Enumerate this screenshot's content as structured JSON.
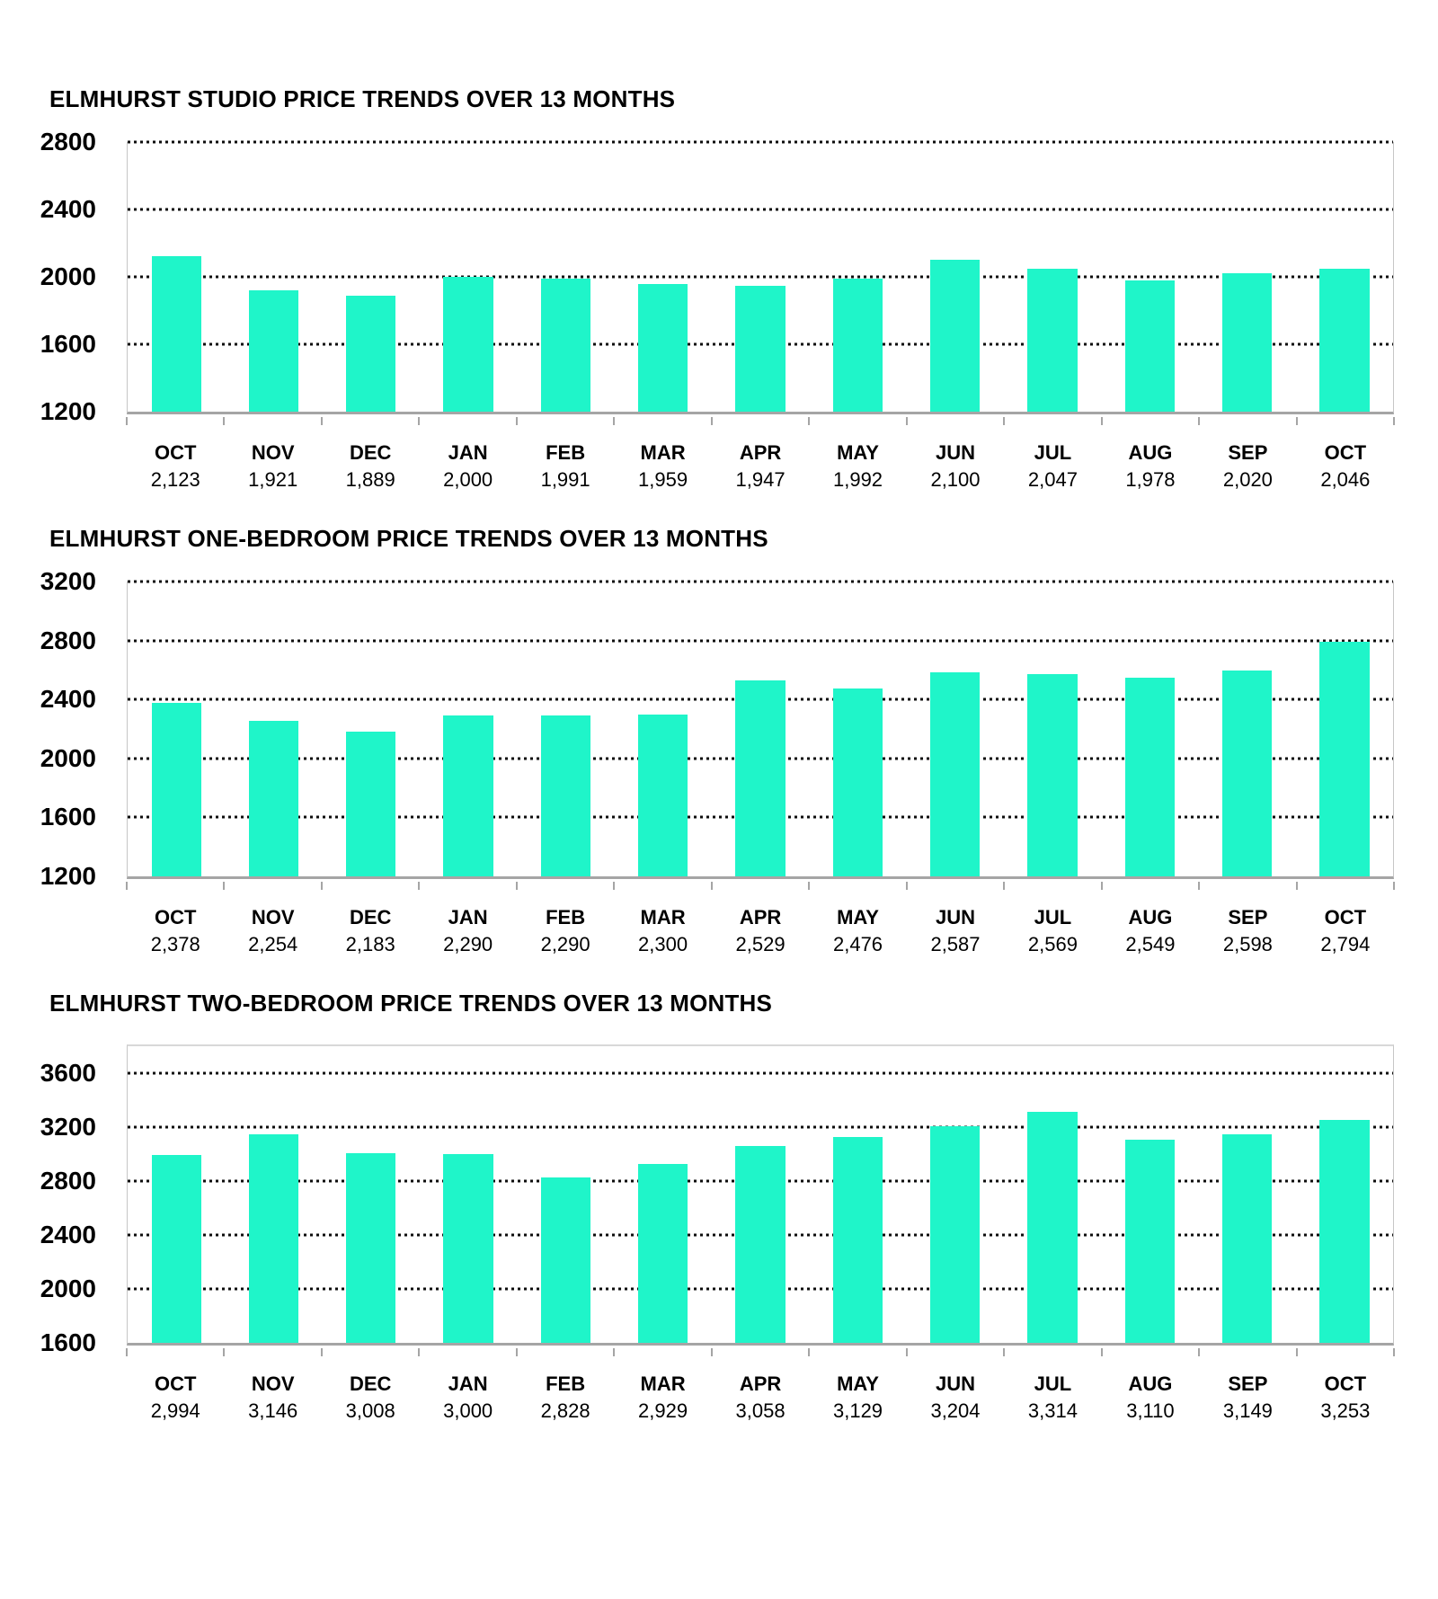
{
  "style": {
    "background": "#ffffff",
    "bar_color": "#1FF5C9",
    "grid_dot_color": "#0d0d0d",
    "axis_color": "#a5a5a5",
    "plot_border_color": "#c6c6c6",
    "text_color": "#000000"
  },
  "chart_data": [
    {
      "type": "bar",
      "title": "ELMHURST STUDIO PRICE TRENDS OVER 13 MONTHS",
      "categories": [
        "OCT",
        "NOV",
        "DEC",
        "JAN",
        "FEB",
        "MAR",
        "APR",
        "MAY",
        "JUN",
        "JUL",
        "AUG",
        "SEP",
        "OCT"
      ],
      "values": [
        2123,
        1921,
        1889,
        2000,
        1991,
        1959,
        1947,
        1992,
        2100,
        2047,
        1978,
        2020,
        2046
      ],
      "value_labels": [
        "2,123",
        "1,921",
        "1,889",
        "2,000",
        "1,991",
        "1,959",
        "1,947",
        "1,992",
        "2,100",
        "2,047",
        "1,978",
        "2,020",
        "2,046"
      ],
      "xlabel": "",
      "ylabel": "",
      "ylim": [
        1200,
        2800
      ],
      "yticks": [
        1200,
        1600,
        2000,
        2400,
        2800
      ],
      "grid": "horizontal dotted",
      "legend": "none",
      "bar_color": "#1FF5C9",
      "top_border": false
    },
    {
      "type": "bar",
      "title": "ELMHURST ONE-BEDROOM PRICE TRENDS OVER 13 MONTHS",
      "categories": [
        "OCT",
        "NOV",
        "DEC",
        "JAN",
        "FEB",
        "MAR",
        "APR",
        "MAY",
        "JUN",
        "JUL",
        "AUG",
        "SEP",
        "OCT"
      ],
      "values": [
        2378,
        2254,
        2183,
        2290,
        2290,
        2300,
        2529,
        2476,
        2587,
        2569,
        2549,
        2598,
        2794
      ],
      "value_labels": [
        "2,378",
        "2,254",
        "2,183",
        "2,290",
        "2,290",
        "2,300",
        "2,529",
        "2,476",
        "2,587",
        "2,569",
        "2,549",
        "2,598",
        "2,794"
      ],
      "xlabel": "",
      "ylabel": "",
      "ylim": [
        1200,
        3200
      ],
      "yticks": [
        1200,
        1600,
        2000,
        2400,
        2800,
        3200
      ],
      "grid": "horizontal dotted",
      "legend": "none",
      "bar_color": "#1FF5C9",
      "top_border": false
    },
    {
      "type": "bar",
      "title": "ELMHURST TWO-BEDROOM PRICE TRENDS OVER 13 MONTHS",
      "categories": [
        "OCT",
        "NOV",
        "DEC",
        "JAN",
        "FEB",
        "MAR",
        "APR",
        "MAY",
        "JUN",
        "JUL",
        "AUG",
        "SEP",
        "OCT"
      ],
      "values": [
        2994,
        3146,
        3008,
        3000,
        2828,
        2929,
        3058,
        3129,
        3204,
        3314,
        3110,
        3149,
        3253
      ],
      "value_labels": [
        "2,994",
        "3,146",
        "3,008",
        "3,000",
        "2,828",
        "2,929",
        "3,058",
        "3,129",
        "3,204",
        "3,314",
        "3,110",
        "3,149",
        "3,253"
      ],
      "xlabel": "",
      "ylabel": "",
      "ylim": [
        1600,
        3800
      ],
      "yticks": [
        1600,
        2000,
        2400,
        2800,
        3200,
        3600
      ],
      "grid": "horizontal dotted",
      "legend": "none",
      "bar_color": "#1FF5C9",
      "top_border": true
    }
  ]
}
